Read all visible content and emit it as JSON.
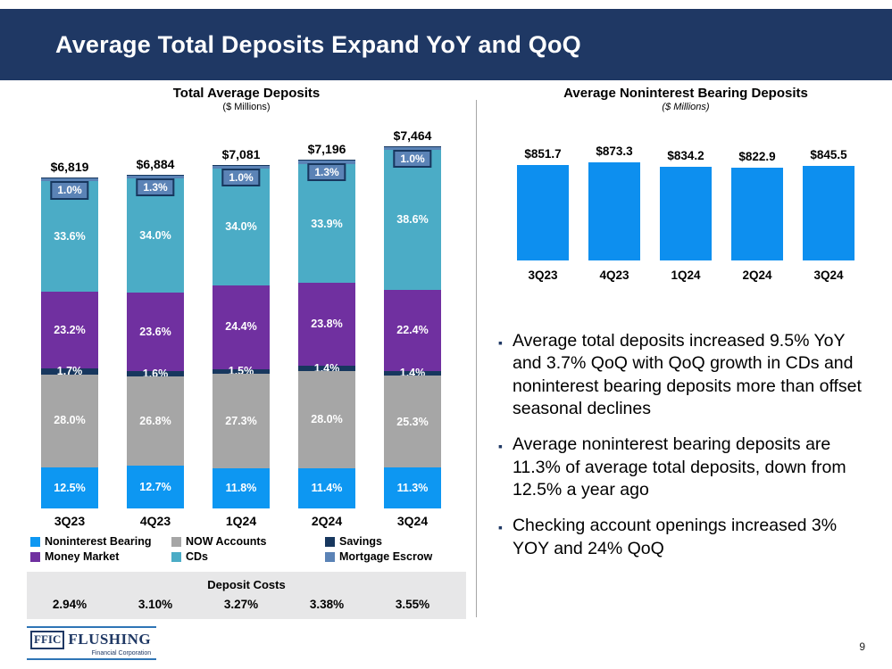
{
  "slide": {
    "title": "Average Total Deposits Expand YoY and QoQ",
    "page_number": "9"
  },
  "colors": {
    "header_bg": "#1F3864",
    "noninterest_bearing": "#0D97F2",
    "now_accounts": "#A6A6A6",
    "savings": "#17375E",
    "money_market": "#7030A0",
    "cds": "#4BACC6",
    "mortgage_escrow": "#5B83B6",
    "right_bar": "#0D8FEF",
    "deposit_costs_bg": "#E7E7E8"
  },
  "chart_data": [
    {
      "type": "bar",
      "subtype": "stacked-percent",
      "title": "Total Average Deposits",
      "subtitle": "($ Millions)",
      "categories": [
        "3Q23",
        "4Q23",
        "1Q24",
        "2Q24",
        "3Q24"
      ],
      "totals": [
        "$6,819",
        "$6,884",
        "$7,081",
        "$7,196",
        "$7,464"
      ],
      "total_values": [
        6819,
        6884,
        7081,
        7196,
        7464
      ],
      "unit": "%",
      "legend_position": "bottom",
      "series": [
        {
          "name": "Noninterest Bearing",
          "color": "#0D97F2",
          "values": [
            12.5,
            12.7,
            11.8,
            11.4,
            11.3
          ]
        },
        {
          "name": "NOW Accounts",
          "color": "#A6A6A6",
          "values": [
            28.0,
            26.8,
            27.3,
            28.0,
            25.3
          ]
        },
        {
          "name": "Savings",
          "color": "#17375E",
          "values": [
            1.7,
            1.6,
            1.5,
            1.4,
            1.4
          ]
        },
        {
          "name": "Money Market",
          "color": "#7030A0",
          "values": [
            23.2,
            23.6,
            24.4,
            23.8,
            22.4
          ]
        },
        {
          "name": "CDs",
          "color": "#4BACC6",
          "values": [
            33.6,
            34.0,
            34.0,
            33.9,
            38.6
          ]
        },
        {
          "name": "Mortgage Escrow",
          "color": "#5B83B6",
          "values": [
            1.0,
            1.3,
            1.0,
            1.3,
            1.0
          ],
          "label_style": "badge"
        }
      ]
    },
    {
      "type": "bar",
      "title": "Average Noninterest Bearing Deposits",
      "subtitle": "($ Millions)",
      "categories": [
        "3Q23",
        "4Q23",
        "1Q24",
        "2Q24",
        "3Q24"
      ],
      "values": [
        851.7,
        873.3,
        834.2,
        822.9,
        845.5
      ],
      "labels": [
        "$851.7",
        "$873.3",
        "$834.2",
        "$822.9",
        "$845.5"
      ],
      "bar_color": "#0D8FEF",
      "ylim": [
        0,
        873.3
      ]
    }
  ],
  "deposit_costs": {
    "title": "Deposit Costs",
    "values": [
      "2.94%",
      "3.10%",
      "3.27%",
      "3.38%",
      "3.55%"
    ]
  },
  "bullets": [
    "Average total deposits increased 9.5% YoY and 3.7% QoQ with QoQ growth in CDs and noninterest bearing deposits more than offset seasonal declines",
    "Average noninterest bearing deposits are 11.3% of average total deposits, down from 12.5% a year ago",
    "Checking account openings increased 3% YOY and 24% QoQ"
  ],
  "logo": {
    "ffic": "FFIC",
    "name": "FLUSHING",
    "subtitle": "Financial Corporation"
  }
}
